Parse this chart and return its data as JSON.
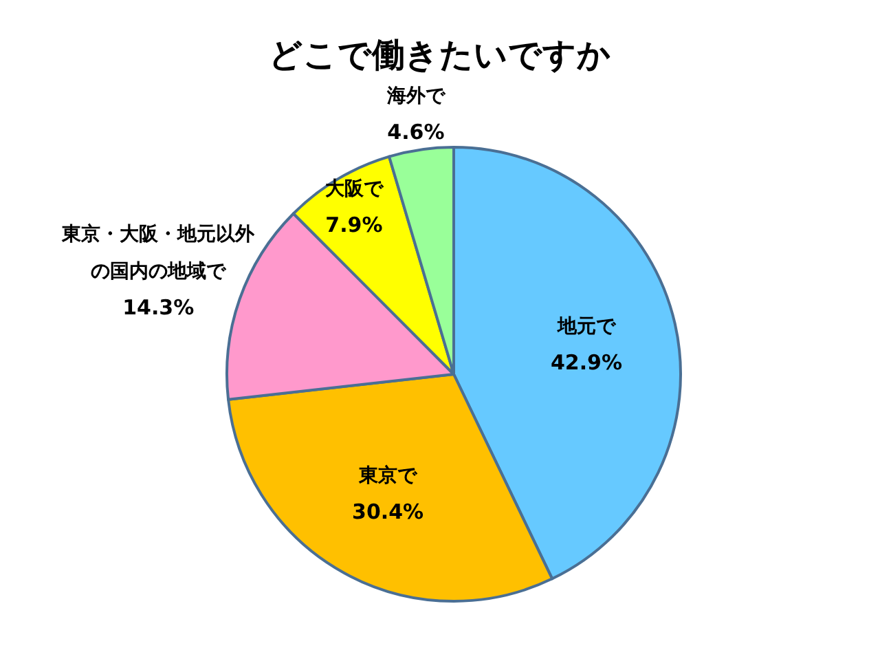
{
  "chart_data": {
    "type": "pie",
    "title": "どこで働きたいですか",
    "categories": [
      "地元で",
      "東京で",
      "東京・大阪・地元以外の国内の地域で",
      "大阪で",
      "海外で"
    ],
    "values": [
      42.9,
      30.4,
      14.3,
      7.9,
      4.6
    ],
    "colors": [
      "#66c9ff",
      "#ffc000",
      "#ff99cc",
      "#ffff00",
      "#99ff99"
    ],
    "value_labels": [
      "42.9%",
      "30.4%",
      "14.3%",
      "7.9%",
      "4.6%"
    ]
  }
}
